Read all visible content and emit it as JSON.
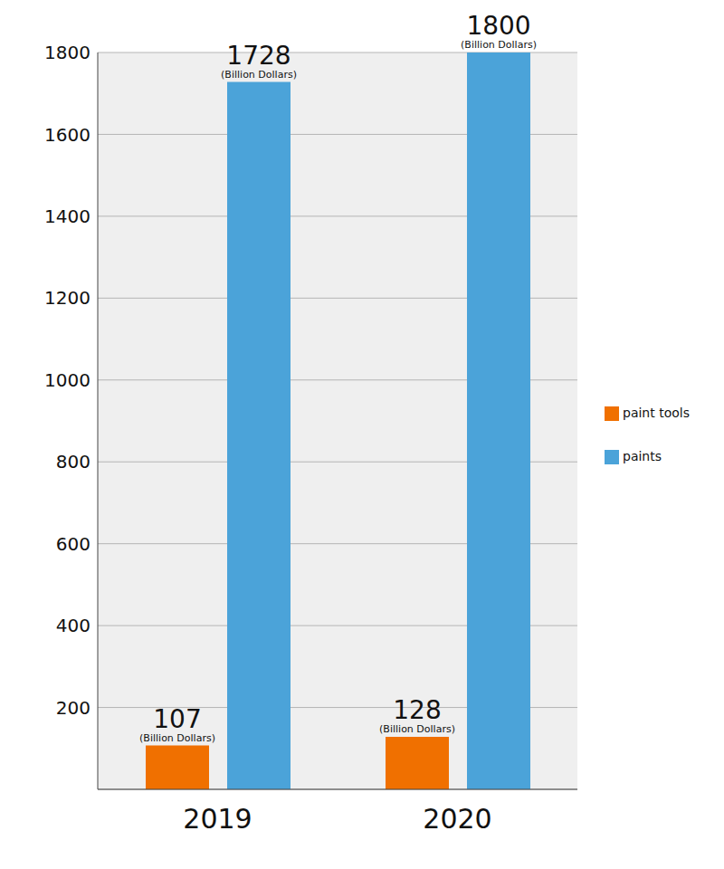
{
  "chart_data": {
    "type": "bar",
    "categories": [
      "2019",
      "2020"
    ],
    "series": [
      {
        "name": "paint tools",
        "color": "#f07000",
        "values": [
          107,
          128
        ],
        "value_labels": [
          "107 (Billion Dollars)",
          "128 (Billion Dollars)"
        ]
      },
      {
        "name": "paints",
        "color": "#4ba3d9",
        "values": [
          1728,
          1800
        ],
        "value_labels": [
          "1728 (Billion Dollars)",
          "1800 (Billion Dollars)"
        ]
      }
    ],
    "ylim": [
      0,
      1800
    ],
    "yticks": [
      200,
      400,
      600,
      800,
      1000,
      1200,
      1400,
      1600,
      1800
    ],
    "grid": true,
    "legend": "right",
    "data_labels": true
  }
}
